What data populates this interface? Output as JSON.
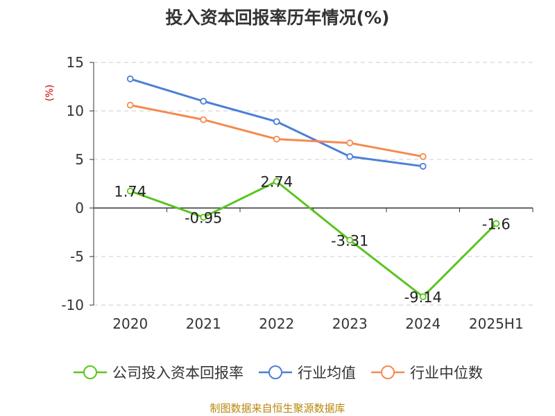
{
  "chart_data": {
    "type": "line",
    "title": "投入资本回报率历年情况(%)",
    "ylabel": "(%)",
    "categories": [
      "2020",
      "2021",
      "2022",
      "2023",
      "2024",
      "2025H1"
    ],
    "ylim": [
      -10,
      15
    ],
    "yticks": [
      15,
      10,
      5,
      0,
      -5,
      -10
    ],
    "grid": true,
    "legend_position": "bottom",
    "series": [
      {
        "name": "公司投入资本回报率",
        "color": "#5ac51e",
        "values": [
          1.74,
          -0.95,
          2.74,
          -3.31,
          -9.14,
          -1.6
        ],
        "labels": [
          "1.74",
          "-0.95",
          "2.74",
          "-3.31",
          "-9.14",
          "-1.6"
        ]
      },
      {
        "name": "行业均值",
        "color": "#4a7fd8",
        "values": [
          13.3,
          11.0,
          8.9,
          5.3,
          4.3,
          null
        ]
      },
      {
        "name": "行业中位数",
        "color": "#f5894f",
        "values": [
          10.6,
          9.1,
          7.1,
          6.7,
          5.3,
          null
        ]
      }
    ]
  },
  "source": "制图数据来自恒生聚源数据库"
}
